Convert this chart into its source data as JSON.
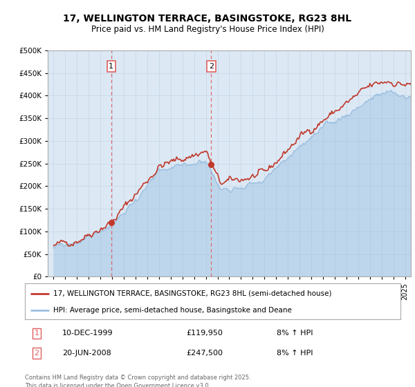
{
  "title_line1": "17, WELLINGTON TERRACE, BASINGSTOKE, RG23 8HL",
  "title_line2": "Price paid vs. HM Land Registry's House Price Index (HPI)",
  "legend_line1": "17, WELLINGTON TERRACE, BASINGSTOKE, RG23 8HL (semi-detached house)",
  "legend_line2": "HPI: Average price, semi-detached house, Basingstoke and Deane",
  "footnote": "Contains HM Land Registry data © Crown copyright and database right 2025.\nThis data is licensed under the Open Government Licence v3.0.",
  "sale1_label": "1",
  "sale1_date": "10-DEC-1999",
  "sale1_price": "£119,950",
  "sale1_hpi": "8% ↑ HPI",
  "sale1_x": 1999.92,
  "sale1_y": 119950,
  "sale2_label": "2",
  "sale2_date": "20-JUN-2008",
  "sale2_price": "£247,500",
  "sale2_hpi": "8% ↑ HPI",
  "sale2_x": 2008.46,
  "sale2_y": 247500,
  "hpi_color": "#9bbfe0",
  "price_color": "#c0392b",
  "vline_color": "#e06060",
  "bg_color": "#dce9f5",
  "grid_color": "#c8d8e8",
  "ylim": [
    0,
    500000
  ],
  "xlim_start": 1994.5,
  "xlim_end": 2025.5
}
